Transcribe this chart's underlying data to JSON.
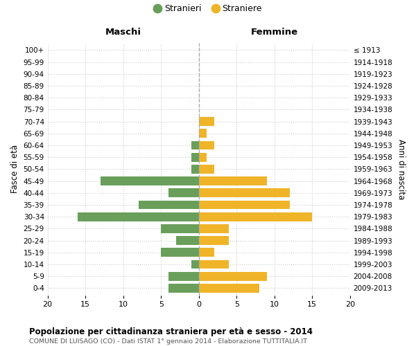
{
  "age_groups": [
    "0-4",
    "5-9",
    "10-14",
    "15-19",
    "20-24",
    "25-29",
    "30-34",
    "35-39",
    "40-44",
    "45-49",
    "50-54",
    "55-59",
    "60-64",
    "65-69",
    "70-74",
    "75-79",
    "80-84",
    "85-89",
    "90-94",
    "95-99",
    "100+"
  ],
  "birth_years": [
    "2009-2013",
    "2004-2008",
    "1999-2003",
    "1994-1998",
    "1989-1993",
    "1984-1988",
    "1979-1983",
    "1974-1978",
    "1969-1973",
    "1964-1968",
    "1959-1963",
    "1954-1958",
    "1949-1953",
    "1944-1948",
    "1939-1943",
    "1934-1938",
    "1929-1933",
    "1924-1928",
    "1919-1923",
    "1914-1918",
    "≤ 1913"
  ],
  "maschi": [
    4,
    4,
    1,
    5,
    3,
    5,
    16,
    8,
    4,
    13,
    1,
    1,
    1,
    0,
    0,
    0,
    0,
    0,
    0,
    0,
    0
  ],
  "femmine": [
    8,
    9,
    4,
    2,
    4,
    4,
    15,
    12,
    12,
    9,
    2,
    1,
    2,
    1,
    2,
    0,
    0,
    0,
    0,
    0,
    0
  ],
  "maschi_color": "#6a9f5b",
  "femmine_color": "#f0b429",
  "title": "Popolazione per cittadinanza straniera per età e sesso - 2014",
  "subtitle": "COMUNE DI LUISAGO (CO) - Dati ISTAT 1° gennaio 2014 - Elaborazione TUTTITALIA.IT",
  "legend_maschi": "Stranieri",
  "legend_femmine": "Straniere",
  "xlabel_left": "Maschi",
  "xlabel_right": "Femmine",
  "ylabel_left": "Fasce di età",
  "ylabel_right": "Anni di nascita",
  "xlim": 20,
  "grid_color": "#cccccc",
  "bar_height": 0.75
}
